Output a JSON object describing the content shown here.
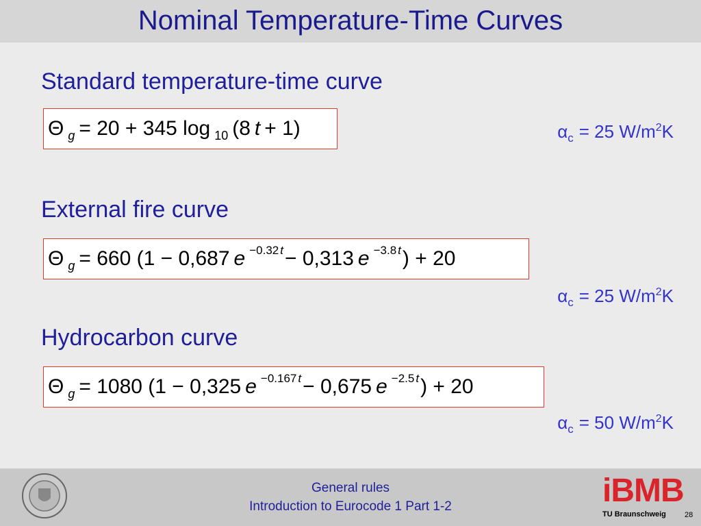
{
  "header": {
    "title": "Nominal Temperature-Time Curves"
  },
  "sections": [
    {
      "heading": "Standard temperature-time curve",
      "formula": [
        {
          "t": "Θ"
        },
        {
          "t": "g",
          "s": "sub-italic"
        },
        {
          "t": "= 20 + 345 log"
        },
        {
          "t": "10",
          "s": "sub"
        },
        {
          "t": "(8"
        },
        {
          "t": "t",
          "s": "italic"
        },
        {
          "t": "+ 1)"
        }
      ],
      "alpha": [
        {
          "t": "α"
        },
        {
          "t": "c",
          "s": "sub"
        },
        {
          "t": "= 25 W/m"
        },
        {
          "t": "2",
          "s": "sup"
        },
        {
          "t": "K"
        }
      ]
    },
    {
      "heading": "External fire curve",
      "formula": [
        {
          "t": "Θ"
        },
        {
          "t": "g",
          "s": "sub-italic"
        },
        {
          "t": "= 660 (1 − 0,687"
        },
        {
          "t": "e",
          "s": "italic"
        },
        {
          "t": "−0.32",
          "s": "sup"
        },
        {
          "t": "t",
          "s": "sup-italic"
        },
        {
          "t": "− 0,313"
        },
        {
          "t": "e",
          "s": "italic"
        },
        {
          "t": "−3.8",
          "s": "sup"
        },
        {
          "t": "t",
          "s": "sup-italic"
        },
        {
          "t": ") + 20"
        }
      ],
      "alpha": [
        {
          "t": "α"
        },
        {
          "t": "c",
          "s": "sub"
        },
        {
          "t": "= 25 W/m"
        },
        {
          "t": "2",
          "s": "sup"
        },
        {
          "t": "K"
        }
      ]
    },
    {
      "heading": "Hydrocarbon curve",
      "formula": [
        {
          "t": "Θ"
        },
        {
          "t": "g",
          "s": "sub-italic"
        },
        {
          "t": "= 1080 (1 − 0,325"
        },
        {
          "t": "e",
          "s": "italic"
        },
        {
          "t": "−0.167",
          "s": "sup"
        },
        {
          "t": "t",
          "s": "sup-italic"
        },
        {
          "t": "− 0,675"
        },
        {
          "t": "e",
          "s": "italic"
        },
        {
          "t": "−2.5",
          "s": "sup"
        },
        {
          "t": "t",
          "s": "sup-italic"
        },
        {
          "t": ") + 20"
        }
      ],
      "alpha": [
        {
          "t": "α"
        },
        {
          "t": "c",
          "s": "sub"
        },
        {
          "t": "= 50 W/m"
        },
        {
          "t": "2",
          "s": "sup"
        },
        {
          "t": "K"
        }
      ]
    }
  ],
  "footer": {
    "line1": "General rules",
    "line2": "Introduction to Eurocode 1 Part 1-2",
    "logo": "iBMB",
    "university": "TU Braunschweig",
    "page": "28"
  }
}
